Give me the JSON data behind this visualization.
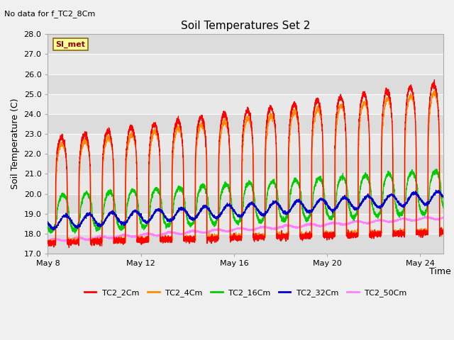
{
  "title": "Soil Temperatures Set 2",
  "top_left_note": "No data for f_TC2_8Cm",
  "si_label": "SI_met",
  "ylabel": "Soil Temperature (C)",
  "xlabel": "Time",
  "ylim": [
    17.0,
    28.0
  ],
  "yticks": [
    17.0,
    18.0,
    19.0,
    20.0,
    21.0,
    22.0,
    23.0,
    24.0,
    25.0,
    26.0,
    27.0,
    28.0
  ],
  "xtick_labels": [
    "May 8",
    "May 12",
    "May 16",
    "May 20",
    "May 24"
  ],
  "xtick_days": [
    0,
    4,
    8,
    12,
    16
  ],
  "series_colors": {
    "TC2_2Cm": "#FF0000",
    "TC2_4Cm": "#FF8C00",
    "TC2_16Cm": "#00CC00",
    "TC2_32Cm": "#0000CC",
    "TC2_50Cm": "#FF80FF"
  },
  "bg_color": "#E8E8E8",
  "grid_color": "#FFFFFF",
  "n_days": 17,
  "points_per_day": 288,
  "start_day": 8
}
